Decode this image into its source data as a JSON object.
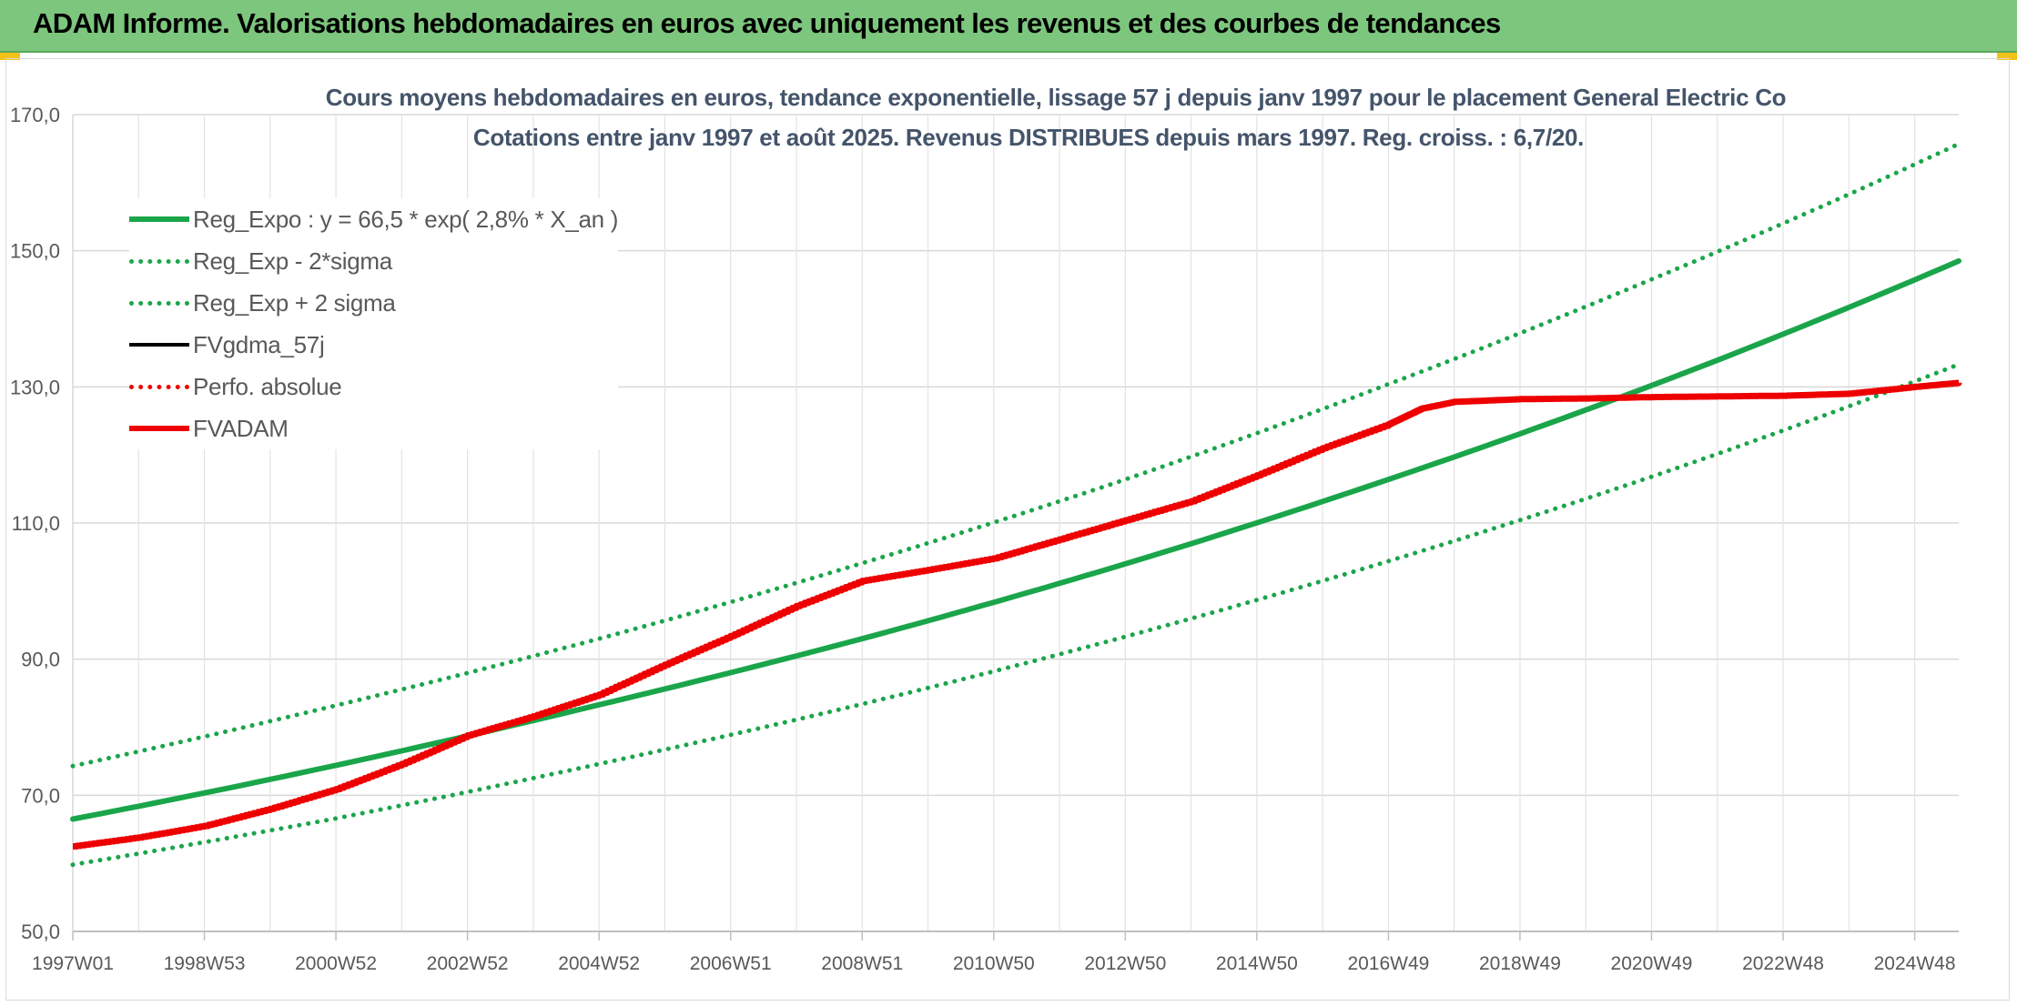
{
  "banner": {
    "title": "ADAM Informe. Valorisations hebdomadaires en euros avec uniquement les revenus et des courbes de tendances"
  },
  "colors": {
    "banner_bg": "#7dc67d",
    "accent_corner": "#f2c21b",
    "reg_green": "#1aa54a",
    "fvadam_red": "#ee0000",
    "title_text": "#44546a"
  },
  "chart_data": {
    "type": "line",
    "title": "Cours moyens hebdomadaires en euros, tendance exponentielle, lissage 57 j depuis janv 1997 pour le placement General  Electric Co",
    "subtitle": "Cotations entre janv 1997 et août 2025. Revenus DISTRIBUES depuis mars 1997. Reg. croiss. : 6,7/20.",
    "xlabel": "",
    "ylabel": "",
    "ylim": [
      50,
      170
    ],
    "y_ticks": [
      "50,0",
      "70,0",
      "90,0",
      "110,0",
      "130,0",
      "150,0",
      "170,0"
    ],
    "y_tick_values": [
      50,
      70,
      90,
      110,
      130,
      150,
      170
    ],
    "x_range": [
      1997.0,
      2025.67
    ],
    "x_ticks": [
      "1997W01",
      "1998W53",
      "2000W52",
      "2002W52",
      "2004W52",
      "2006W51",
      "2008W51",
      "2010W50",
      "2012W50",
      "2014W50",
      "2016W49",
      "2018W49",
      "2020W49",
      "2022W48",
      "2024W48"
    ],
    "x_tick_years": [
      1997.0,
      1999.0,
      2001.0,
      2003.0,
      2005.0,
      2007.0,
      2009.0,
      2011.0,
      2013.0,
      2015.0,
      2017.0,
      2019.0,
      2021.0,
      2023.0,
      2025.0
    ],
    "grid": true,
    "legend_position": "top-left",
    "series": [
      {
        "name": "Reg_Expo : y = 66,5 * exp( 2,8% *  X_an )",
        "style": "solid-thick",
        "color": "#1aa54a",
        "x": [
          1997.0,
          2001.0,
          2005.0,
          2009.0,
          2013.0,
          2017.0,
          2021.0,
          2025.67
        ],
        "y": [
          66.5,
          74.4,
          83.3,
          93.0,
          104.0,
          116.4,
          130.2,
          148.5
        ]
      },
      {
        "name": "Reg_Exp - 2*sigma",
        "style": "dotted",
        "color": "#1aa54a",
        "x": [
          1997.0,
          2001.0,
          2005.0,
          2009.0,
          2013.0,
          2017.0,
          2021.0,
          2025.67
        ],
        "y": [
          59.8,
          66.6,
          74.6,
          83.4,
          93.3,
          104.4,
          116.8,
          133.3
        ]
      },
      {
        "name": "Reg_Exp + 2 sigma",
        "style": "dotted",
        "color": "#1aa54a",
        "x": [
          1997.0,
          2001.0,
          2005.0,
          2009.0,
          2013.0,
          2017.0,
          2021.0,
          2025.67
        ],
        "y": [
          74.3,
          83.2,
          93.0,
          104.1,
          116.4,
          130.4,
          145.8,
          165.7
        ]
      },
      {
        "name": "FVgdma_57j",
        "style": "solid",
        "color": "#000000",
        "x": [],
        "y": []
      },
      {
        "name": "Perfo. absolue",
        "style": "dotted",
        "color": "#ee0000",
        "x": [],
        "y": []
      },
      {
        "name": "FVADAM",
        "style": "solid-thick",
        "color": "#ee0000",
        "x": [
          1997.0,
          1998.0,
          1999.0,
          2000.0,
          2001.0,
          2002.0,
          2003.0,
          2004.0,
          2005.0,
          2006.0,
          2007.0,
          2008.0,
          2009.0,
          2010.0,
          2011.0,
          2012.0,
          2013.0,
          2014.0,
          2015.0,
          2016.0,
          2017.0,
          2017.5,
          2018.0,
          2019.0,
          2020.0,
          2021.0,
          2022.0,
          2023.0,
          2024.0,
          2025.0,
          2025.67
        ],
        "y": [
          62.5,
          63.8,
          65.5,
          68.0,
          70.9,
          74.6,
          78.8,
          81.6,
          84.8,
          89.2,
          93.4,
          97.8,
          101.5,
          103.1,
          104.8,
          107.6,
          110.4,
          113.2,
          117.0,
          121.0,
          124.5,
          126.8,
          127.8,
          128.2,
          128.3,
          128.5,
          128.6,
          128.7,
          129.0,
          130.0,
          130.6
        ]
      }
    ]
  }
}
